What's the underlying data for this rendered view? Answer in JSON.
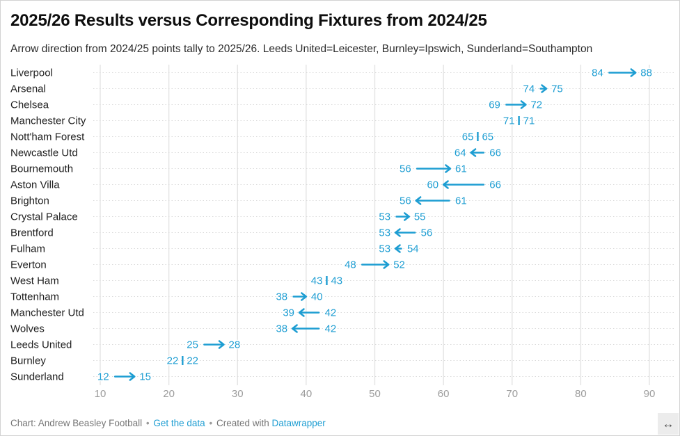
{
  "chart_data": {
    "type": "arrow",
    "title": "2025/26 Results versus Corresponding Fixtures from 2024/25",
    "subtitle": "Arrow direction from 2024/25 points tally to 2025/26. Leeds United=Leicester, Burnley=Ipswich, Sunderland=Southampton",
    "series_note": "from = 2024/25 points tally, to = 2025/26 points tally",
    "teams": [
      {
        "name": "Liverpool",
        "from": 84,
        "to": 88
      },
      {
        "name": "Arsenal",
        "from": 74,
        "to": 75
      },
      {
        "name": "Chelsea",
        "from": 69,
        "to": 72
      },
      {
        "name": "Manchester City",
        "from": 71,
        "to": 71
      },
      {
        "name": "Nott'ham Forest",
        "from": 65,
        "to": 65
      },
      {
        "name": "Newcastle Utd",
        "from": 66,
        "to": 64
      },
      {
        "name": "Bournemouth",
        "from": 56,
        "to": 61
      },
      {
        "name": "Aston Villa",
        "from": 66,
        "to": 60
      },
      {
        "name": "Brighton",
        "from": 61,
        "to": 56
      },
      {
        "name": "Crystal Palace",
        "from": 53,
        "to": 55
      },
      {
        "name": "Brentford",
        "from": 56,
        "to": 53
      },
      {
        "name": "Fulham",
        "from": 54,
        "to": 53
      },
      {
        "name": "Everton",
        "from": 48,
        "to": 52
      },
      {
        "name": "West Ham",
        "from": 43,
        "to": 43
      },
      {
        "name": "Tottenham",
        "from": 38,
        "to": 40
      },
      {
        "name": "Manchester Utd",
        "from": 42,
        "to": 39
      },
      {
        "name": "Wolves",
        "from": 42,
        "to": 38
      },
      {
        "name": "Leeds United",
        "from": 25,
        "to": 28
      },
      {
        "name": "Burnley",
        "from": 22,
        "to": 22
      },
      {
        "name": "Sunderland",
        "from": 12,
        "to": 15
      }
    ],
    "x_ticks": [
      10,
      20,
      30,
      40,
      50,
      60,
      70,
      80,
      90
    ],
    "xlim": [
      9,
      94
    ],
    "grid": "solid vertical gridlines at each tick, dotted horizontal line per row",
    "legend": "none",
    "arrow_color": "#1d9dd2",
    "value_label_color": "#1d9dd2",
    "team_label_color": "#1f1f1f",
    "tick_label_color": "#9c9c9c",
    "gridline_color": "#e4e4e4",
    "dotted_line_color": "#d8d8d8"
  },
  "footer": {
    "credit": "Chart: Andrew Beasley Football",
    "sep": "•",
    "link_get_data": "Get the data",
    "created_with": "Created with",
    "link_datawrapper": "Datawrapper"
  },
  "controls": {
    "resize_icon": "↔"
  }
}
